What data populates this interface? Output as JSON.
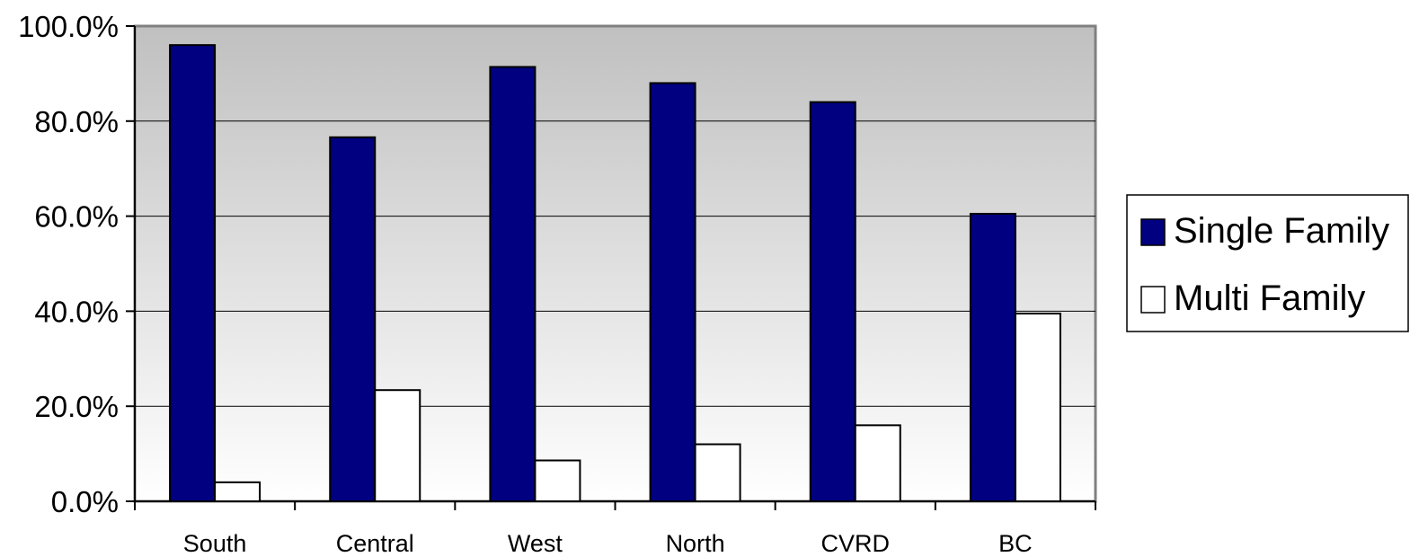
{
  "chart_data": {
    "type": "bar",
    "categories": [
      "South",
      "Central",
      "West",
      "North",
      "CVRD",
      "BC"
    ],
    "series": [
      {
        "name": "Single Family",
        "values": [
          96.0,
          76.6,
          91.4,
          88.0,
          84.0,
          60.5
        ],
        "color": "#000080"
      },
      {
        "name": "Multi Family",
        "values": [
          4.0,
          23.4,
          8.6,
          12.0,
          16.0,
          39.5
        ],
        "color": "#ffffff"
      }
    ],
    "ylim": [
      0,
      100
    ],
    "yticks": [
      "0.0%",
      "20.0%",
      "40.0%",
      "60.0%",
      "80.0%",
      "100.0%"
    ],
    "ytick_values": [
      0,
      20,
      40,
      60,
      80,
      100
    ],
    "grid": true,
    "legend_position": "right",
    "plot_background": {
      "top": "#c0c0c0",
      "bottom": "#ffffff"
    }
  }
}
